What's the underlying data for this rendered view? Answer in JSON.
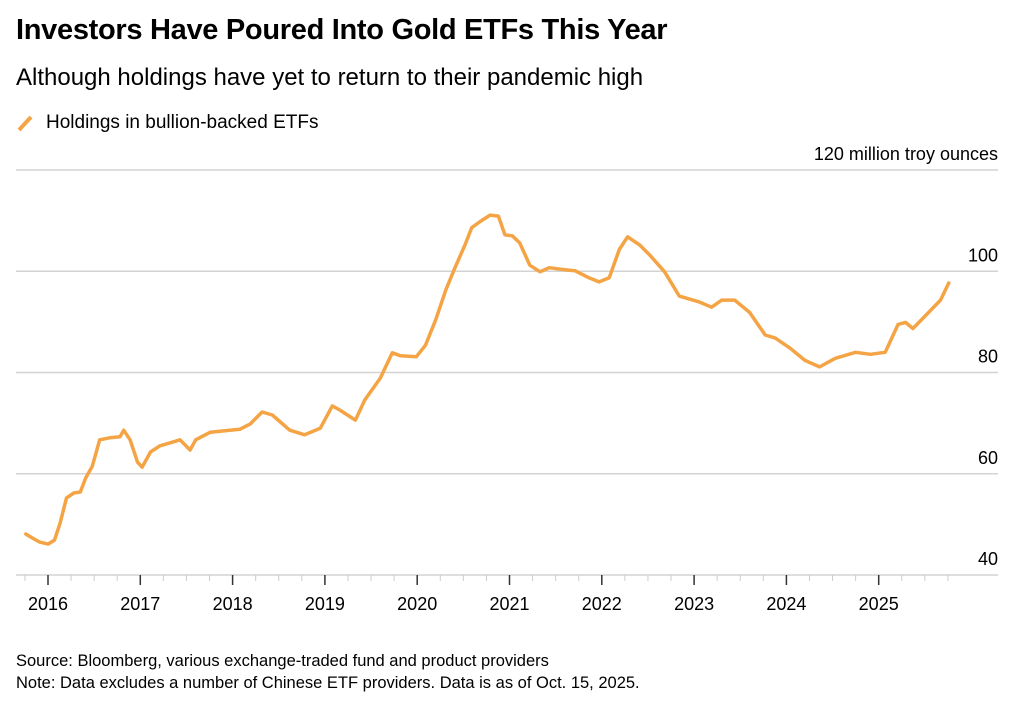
{
  "title": "Investors Have Poured Into Gold ETFs This Year",
  "subtitle": "Although holdings have yet to return to their pandemic high",
  "legend": {
    "label": "Holdings in bullion-backed ETFs",
    "color": "#f4a444",
    "icon": "diagonal-line-icon"
  },
  "footer": {
    "source": "Source: Bloomberg, various exchange-traded fund and product providers",
    "note": "Note: Data excludes a number of Chinese ETF providers. Data is as of Oct. 15, 2025."
  },
  "chart_data": {
    "type": "line",
    "title": "Investors Have Poured Into Gold ETFs This Year",
    "subtitle": "Although holdings have yet to return to their pandemic high",
    "xlabel": "",
    "ylabel": "million troy ounces",
    "y_unit_label": "120 million troy ounces",
    "ylim": [
      40,
      120
    ],
    "y_ticks": [
      40,
      60,
      80,
      100,
      120
    ],
    "y_tick_labels": [
      "40",
      "60",
      "80",
      "100",
      "120 million troy ounces"
    ],
    "xlim": [
      2015.65,
      2026.3
    ],
    "x_ticks": [
      2016,
      2017,
      2018,
      2019,
      2020,
      2021,
      2022,
      2023,
      2024,
      2025
    ],
    "x_tick_labels": [
      "2016",
      "2017",
      "2018",
      "2019",
      "2020",
      "2021",
      "2022",
      "2023",
      "2024",
      "2025"
    ],
    "grid": true,
    "legend_position": "top-left",
    "series": [
      {
        "name": "Holdings in bullion-backed ETFs",
        "color": "#f4a444",
        "x": [
          2015.76,
          2015.83,
          2015.91,
          2016.0,
          2016.07,
          2016.13,
          2016.2,
          2016.28,
          2016.35,
          2016.41,
          2016.48,
          2016.56,
          2016.67,
          2016.78,
          2016.82,
          2016.89,
          2016.97,
          2017.02,
          2017.11,
          2017.21,
          2017.32,
          2017.43,
          2017.54,
          2017.6,
          2017.76,
          2017.97,
          2018.08,
          2018.19,
          2018.32,
          2018.43,
          2018.62,
          2018.78,
          2018.95,
          2019.08,
          2019.16,
          2019.33,
          2019.43,
          2019.6,
          2019.73,
          2019.82,
          2019.99,
          2020.09,
          2020.2,
          2020.31,
          2020.41,
          2020.52,
          2020.59,
          2020.68,
          2020.79,
          2020.88,
          2020.95,
          2021.03,
          2021.11,
          2021.22,
          2021.33,
          2021.43,
          2021.6,
          2021.71,
          2021.86,
          2021.97,
          2022.08,
          2022.19,
          2022.28,
          2022.41,
          2022.52,
          2022.68,
          2022.84,
          2023.06,
          2023.19,
          2023.3,
          2023.44,
          2023.6,
          2023.77,
          2023.88,
          2024.04,
          2024.2,
          2024.36,
          2024.53,
          2024.75,
          2024.91,
          2025.07,
          2025.21,
          2025.29,
          2025.37,
          2025.51,
          2025.67,
          2025.76
        ],
        "values": [
          48.1,
          47.3,
          46.5,
          46.1,
          46.9,
          50.2,
          55.2,
          56.2,
          56.4,
          59.2,
          61.5,
          66.7,
          67.1,
          67.3,
          68.6,
          66.7,
          62.3,
          61.3,
          64.3,
          65.5,
          66.1,
          66.7,
          64.7,
          66.7,
          68.2,
          68.6,
          68.8,
          69.8,
          72.2,
          71.6,
          68.6,
          67.7,
          69.0,
          73.4,
          72.6,
          70.6,
          74.5,
          78.9,
          83.9,
          83.3,
          83.1,
          85.4,
          90.4,
          96.3,
          100.7,
          105.3,
          108.6,
          109.8,
          111.1,
          110.9,
          107.2,
          107.0,
          105.6,
          101.2,
          99.9,
          100.7,
          100.3,
          100.1,
          98.7,
          97.9,
          98.7,
          104.3,
          106.8,
          105.2,
          103.2,
          99.9,
          95.1,
          93.9,
          92.9,
          94.3,
          94.3,
          91.9,
          87.4,
          86.8,
          84.8,
          82.4,
          81.1,
          82.8,
          84.0,
          83.6,
          84.0,
          89.5,
          89.9,
          88.7,
          91.3,
          94.3,
          97.7
        ]
      }
    ]
  }
}
